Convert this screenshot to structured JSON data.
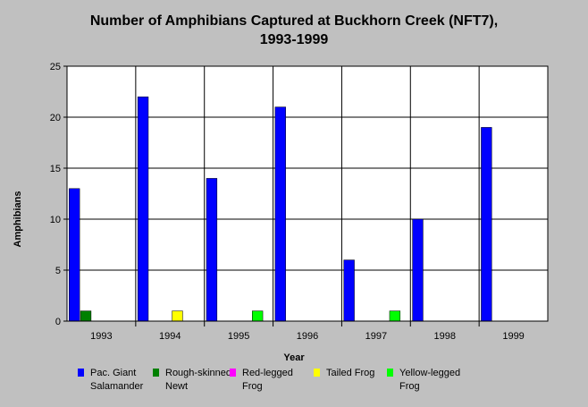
{
  "title_line1": "Number of Amphibians Captured at Buckhorn Creek (NFT7),",
  "title_line2": "1993-1999",
  "chart_data": {
    "type": "bar",
    "xlabel": "Year",
    "ylabel": "Amphibians",
    "ylim": [
      0,
      25
    ],
    "yticks": [
      0,
      5,
      10,
      15,
      20,
      25
    ],
    "categories": [
      "1993",
      "1994",
      "1995",
      "1996",
      "1997",
      "1998",
      "1999"
    ],
    "grid": true,
    "legend_position": "bottom",
    "series": [
      {
        "name": "Pac. Giant Salamander",
        "color": "#0000ff",
        "values": [
          13,
          22,
          14,
          21,
          6,
          10,
          19
        ]
      },
      {
        "name": "Rough-skinned Newt",
        "color": "#008000",
        "values": [
          1,
          0,
          0,
          0,
          0,
          0,
          0
        ]
      },
      {
        "name": "Red-legged Frog",
        "color": "#ff00ff",
        "values": [
          0,
          0,
          0,
          0,
          0,
          0,
          0
        ]
      },
      {
        "name": "Tailed Frog",
        "color": "#ffff00",
        "values": [
          0,
          1,
          0,
          0,
          0,
          0,
          0
        ]
      },
      {
        "name": "Yellow-legged Frog",
        "color": "#00ff00",
        "values": [
          0,
          0,
          1,
          0,
          1,
          0,
          0
        ]
      }
    ]
  }
}
